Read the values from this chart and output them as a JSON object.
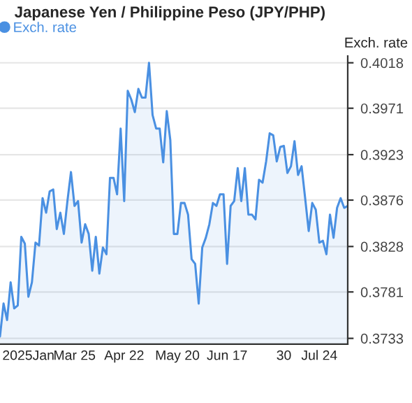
{
  "chart_data": {
    "type": "area",
    "title": "Japanese Yen / Philippine Peso (JPY/PHP)",
    "ylabel": "Exch. rate",
    "categories": [
      null,
      null,
      null,
      null,
      null,
      null,
      null,
      null,
      "2025Jan",
      null,
      null,
      null,
      null,
      null,
      null,
      null,
      null,
      null,
      null,
      null,
      null,
      "Mar 25",
      null,
      null,
      null,
      null,
      null,
      null,
      null,
      null,
      null,
      null,
      null,
      null,
      null,
      "Apr 22",
      null,
      null,
      null,
      null,
      null,
      null,
      null,
      null,
      null,
      null,
      null,
      null,
      null,
      null,
      "May 20",
      null,
      null,
      null,
      null,
      null,
      null,
      null,
      null,
      null,
      null,
      null,
      null,
      null,
      "Jun 17",
      null,
      null,
      null,
      null,
      null,
      null,
      null,
      null,
      null,
      null,
      null,
      null,
      null,
      null,
      null,
      "30",
      null,
      null,
      null,
      null,
      null,
      null,
      null,
      null,
      null,
      "Jul 24",
      null,
      null,
      null,
      null,
      null,
      null,
      null,
      null
    ],
    "series": [
      {
        "name": "Exch. rate",
        "color": "#4a90e2",
        "values": [
          0.3735,
          0.3769,
          0.3752,
          0.3791,
          0.3764,
          0.3767,
          0.3838,
          0.3831,
          0.3776,
          0.3791,
          0.3832,
          0.3829,
          0.3878,
          0.3863,
          0.3885,
          0.3887,
          0.3846,
          0.3863,
          0.3841,
          0.3875,
          0.3905,
          0.387,
          0.3875,
          0.3832,
          0.3851,
          0.3841,
          0.3803,
          0.3838,
          0.38,
          0.3827,
          0.382,
          0.3899,
          0.3899,
          0.3882,
          0.395,
          0.3875,
          0.3989,
          0.398,
          0.3967,
          0.3991,
          0.3982,
          0.3982,
          0.4018,
          0.3964,
          0.395,
          0.395,
          0.3915,
          0.3968,
          0.3938,
          0.3841,
          0.3841,
          0.3873,
          0.3873,
          0.3861,
          0.3815,
          0.381,
          0.3769,
          0.3827,
          0.3837,
          0.3851,
          0.3873,
          0.387,
          0.3882,
          0.3882,
          0.381,
          0.387,
          0.3875,
          0.3909,
          0.3875,
          0.3909,
          0.3861,
          0.3861,
          0.3856,
          0.3897,
          0.3894,
          0.3916,
          0.3945,
          0.3943,
          0.3916,
          0.3931,
          0.3932,
          0.3904,
          0.3911,
          0.3937,
          0.3902,
          0.3911,
          0.3878,
          0.3844,
          0.3873,
          0.3866,
          0.3832,
          0.3834,
          0.382,
          0.3861,
          0.3837,
          0.3868,
          0.3878,
          0.3868,
          0.387
        ]
      }
    ],
    "ylim": [
      0.3727,
      0.4025
    ],
    "yticks": [
      {
        "value": 0.3733,
        "label": "0.3733"
      },
      {
        "value": 0.3781,
        "label": "0.3781"
      },
      {
        "value": 0.3828,
        "label": "0.3828"
      },
      {
        "value": 0.3876,
        "label": "0.3876"
      },
      {
        "value": 0.3923,
        "label": "0.3923"
      },
      {
        "value": 0.3971,
        "label": "0.3971"
      },
      {
        "value": 0.4018,
        "label": "0.4018"
      }
    ],
    "grid": "y",
    "legend": "top left",
    "marker": "none",
    "line_style": "solid"
  }
}
